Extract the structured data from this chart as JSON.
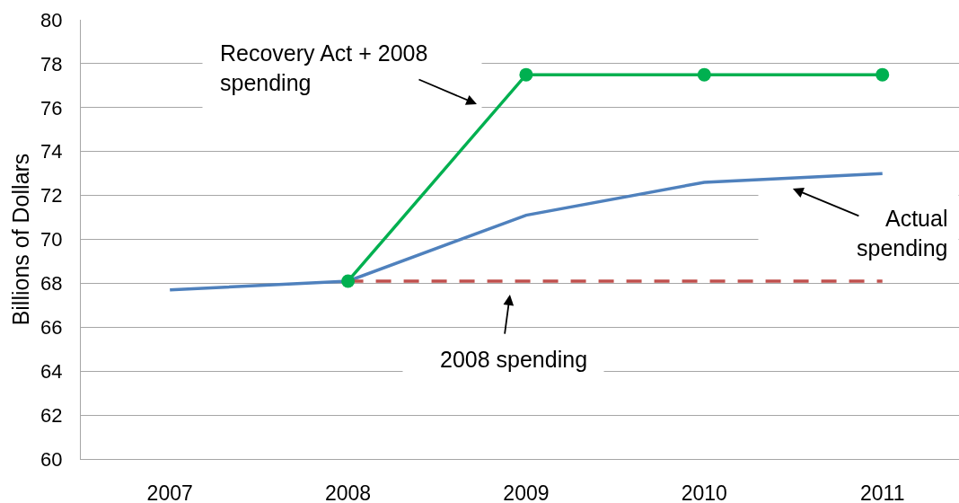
{
  "chart_data": {
    "type": "line",
    "ylabel": "Billions of Dollars",
    "categories": [
      "2007",
      "2008",
      "2009",
      "2010",
      "2011"
    ],
    "series": [
      {
        "color": "#4f81bd",
        "values": [
          67.7,
          68.1,
          71.1,
          72.6,
          73.0
        ]
      },
      {
        "color": "#c0504d",
        "line_style": "dashed",
        "values": [
          null,
          68.1,
          68.1,
          68.1,
          68.1
        ]
      },
      {
        "color": "#00b050",
        "marker": "circle",
        "values": [
          null,
          68.1,
          77.5,
          77.5,
          77.5
        ]
      }
    ],
    "ylim": [
      60,
      80
    ],
    "yticks": [
      60,
      62,
      64,
      66,
      68,
      70,
      72,
      74,
      76,
      78,
      80
    ],
    "grid": "y",
    "annotations": [
      "Recovery Act + 2008\nspending",
      "Actual\nspending",
      "2008 spending"
    ]
  }
}
